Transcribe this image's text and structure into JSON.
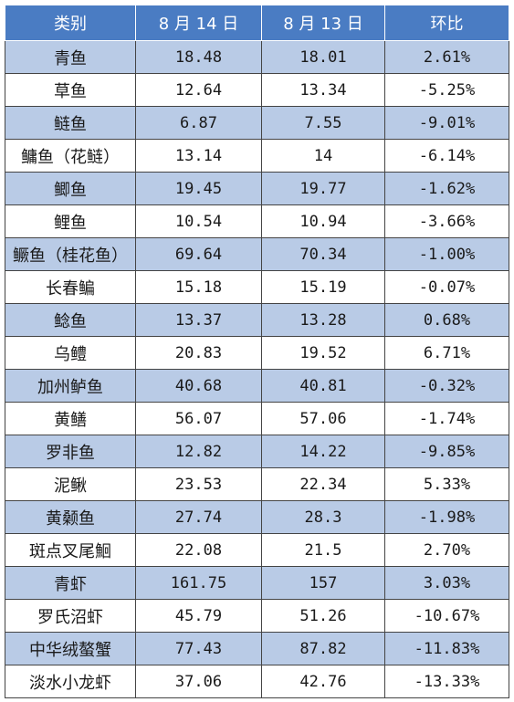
{
  "table": {
    "headers": [
      "类别",
      "8 月 14 日",
      "8 月 13 日",
      "环比"
    ],
    "rows": [
      [
        "青鱼",
        "18.48",
        "18.01",
        "2.61%"
      ],
      [
        "草鱼",
        "12.64",
        "13.34",
        "-5.25%"
      ],
      [
        "鲢鱼",
        "6.87",
        "7.55",
        "-9.01%"
      ],
      [
        "鳙鱼（花鲢）",
        "13.14",
        "14",
        "-6.14%"
      ],
      [
        "鲫鱼",
        "19.45",
        "19.77",
        "-1.62%"
      ],
      [
        "鲤鱼",
        "10.54",
        "10.94",
        "-3.66%"
      ],
      [
        "鳜鱼（桂花鱼）",
        "69.64",
        "70.34",
        "-1.00%"
      ],
      [
        "长春鳊",
        "15.18",
        "15.19",
        "-0.07%"
      ],
      [
        "鲶鱼",
        "13.37",
        "13.28",
        "0.68%"
      ],
      [
        "乌鳢",
        "20.83",
        "19.52",
        "6.71%"
      ],
      [
        "加州鲈鱼",
        "40.68",
        "40.81",
        "-0.32%"
      ],
      [
        "黄鳝",
        "56.07",
        "57.06",
        "-1.74%"
      ],
      [
        "罗非鱼",
        "12.82",
        "14.22",
        "-9.85%"
      ],
      [
        "泥鳅",
        "23.53",
        "22.34",
        "5.33%"
      ],
      [
        "黄颡鱼",
        "27.74",
        "28.3",
        "-1.98%"
      ],
      [
        "斑点叉尾鮰",
        "22.08",
        "21.5",
        "2.70%"
      ],
      [
        "青虾",
        "161.75",
        "157",
        "3.03%"
      ],
      [
        "罗氏沼虾",
        "45.79",
        "51.26",
        "-10.67%"
      ],
      [
        "中华绒螯蟹",
        "77.43",
        "87.82",
        "-11.83%"
      ],
      [
        "淡水小龙虾",
        "37.06",
        "42.76",
        "-13.33%"
      ]
    ]
  },
  "colors": {
    "header_bg": "#4a7cc3",
    "header_text": "#ffffff",
    "alt_row_bg": "#b9cbe6",
    "plain_row_bg": "#ffffff",
    "grid": "#444444"
  }
}
